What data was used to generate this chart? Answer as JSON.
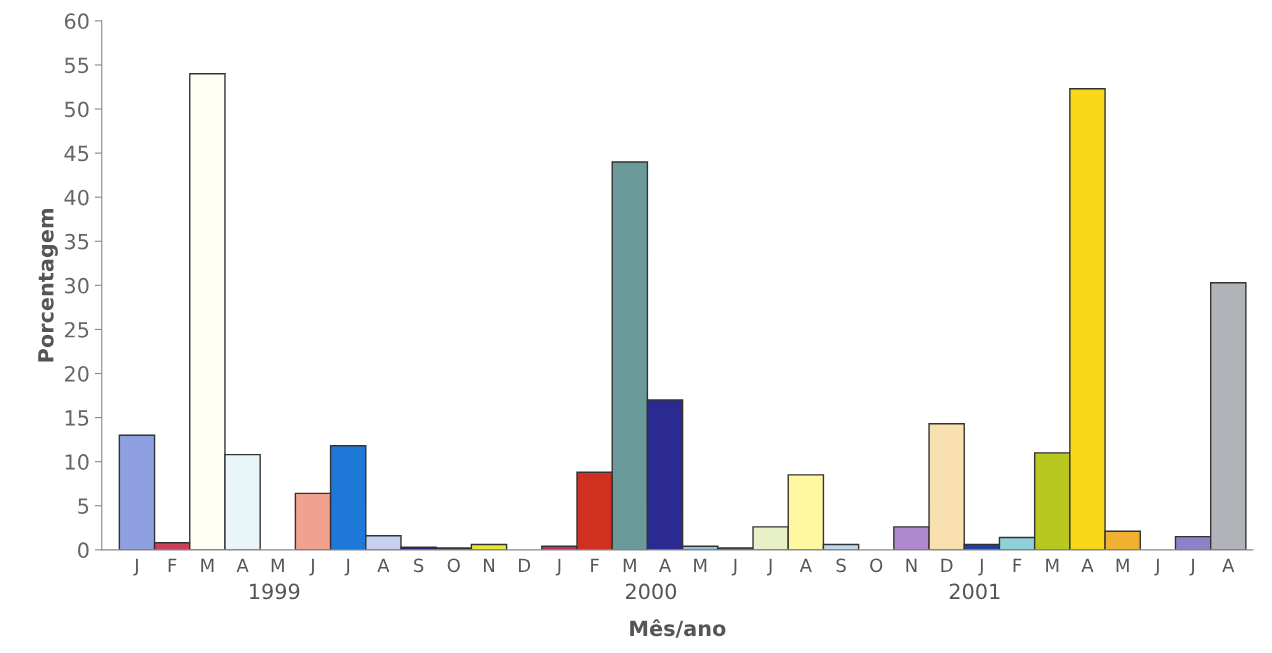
{
  "chart_data": {
    "type": "bar",
    "xlabel": "Mês/ano",
    "ylabel": "Porcentagem",
    "categories": [
      "J",
      "F",
      "M",
      "A",
      "M",
      "J",
      "J",
      "A",
      "S",
      "O",
      "N",
      "D",
      "J",
      "F",
      "M",
      "A",
      "M",
      "J",
      "J",
      "A",
      "S",
      "O",
      "N",
      "D",
      "J",
      "F",
      "M",
      "A",
      "M",
      "J",
      "J",
      "A"
    ],
    "values": [
      13,
      0.8,
      54,
      10.8,
      null,
      6.4,
      11.8,
      1.6,
      0.3,
      0.2,
      0.6,
      null,
      0.4,
      8.8,
      44,
      17,
      0.4,
      0.2,
      2.6,
      8.5,
      0.6,
      null,
      2.6,
      14.3,
      0.6,
      1.4,
      11,
      52.3,
      2.1,
      null,
      1.5,
      30.3
    ],
    "colors": [
      "#8fa0e0",
      "#c8405a",
      "#fffff5",
      "#e8f6fa",
      null,
      "#f2a090",
      "#1e78d8",
      "#c8d0f0",
      "#202070",
      "#303050",
      "#e8e830",
      null,
      "#c03060",
      "#d03020",
      "#6a9a9a",
      "#2a2a90",
      "#90c0e0",
      "#404060",
      "#e8f0c8",
      "#fff8a0",
      "#c0d8f0",
      null,
      "#b088d0",
      "#f8e0b0",
      "#2040a0",
      "#90d0d8",
      "#b8c820",
      "#f8d818",
      "#f0b030",
      null,
      "#9080c8",
      "#b0b4b8"
    ],
    "ylim": [
      0,
      60
    ],
    "yticks": [
      0,
      5,
      10,
      15,
      20,
      25,
      30,
      35,
      40,
      45,
      50,
      55,
      60
    ],
    "grid": false,
    "annotations": [
      "1999",
      "2000",
      "2001"
    ]
  }
}
